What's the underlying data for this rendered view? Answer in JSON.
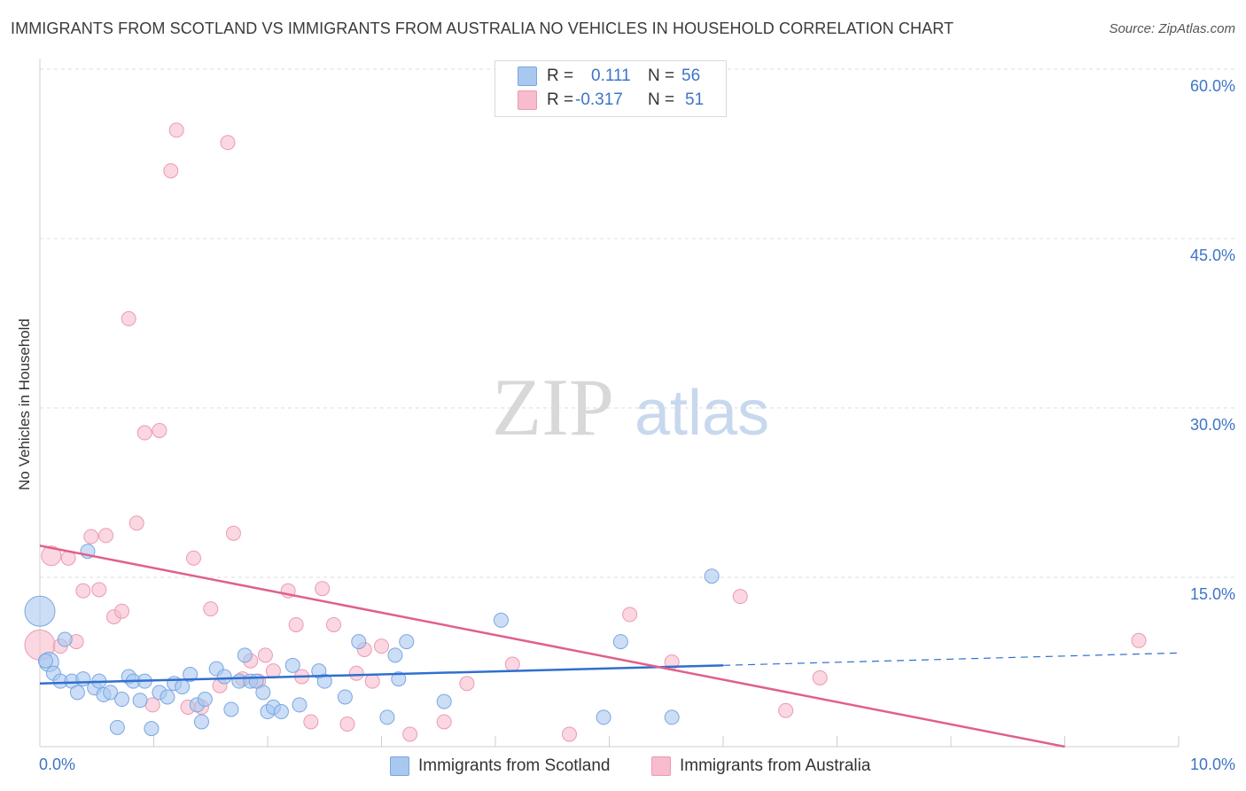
{
  "title": "IMMIGRANTS FROM SCOTLAND VS IMMIGRANTS FROM AUSTRALIA NO VEHICLES IN HOUSEHOLD CORRELATION CHART",
  "source": "Source: ZipAtlas.com",
  "watermark": {
    "zip": "ZIP",
    "atlas": "atlas"
  },
  "legend_top": {
    "scotland": {
      "r_label": "R =",
      "r_value": "0.111",
      "n_label": "N =",
      "n_value": "56"
    },
    "australia": {
      "r_label": "R =",
      "r_value": "-0.317",
      "n_label": "N =",
      "n_value": "51"
    }
  },
  "colors": {
    "scotland_fill": "#a9c8f0",
    "scotland_stroke": "#7aa6e0",
    "scotland_line": "#2f6fcf",
    "australia_fill": "#f7bccd",
    "australia_stroke": "#ec9ab2",
    "australia_line": "#e0608a",
    "tick_text": "#3d74c7",
    "grid": "#dcdcdc"
  },
  "chart_data": {
    "type": "scatter",
    "title": "IMMIGRANTS FROM SCOTLAND VS IMMIGRANTS FROM AUSTRALIA NO VEHICLES IN HOUSEHOLD CORRELATION CHART",
    "xlabel": "",
    "ylabel": "No Vehicles in Household",
    "xlim": [
      0,
      10
    ],
    "ylim": [
      0,
      60
    ],
    "x_tick_labels": [
      "0.0%",
      "10.0%"
    ],
    "y_ticks": [
      15,
      30,
      45,
      60
    ],
    "y_tick_labels": [
      "15.0%",
      "30.0%",
      "45.0%",
      "60.0%"
    ],
    "grid": true,
    "legend_placement": "bottom-center",
    "series": [
      {
        "name": "Immigrants from Scotland",
        "r": 0.111,
        "n": 56,
        "trend": {
          "x0": 0,
          "y0": 5.6,
          "x1": 6.0,
          "y1": 7.2,
          "dashed_to_x": 10.0,
          "dashed_to_y": 8.3
        },
        "points": [
          [
            0.0,
            12.0,
            3
          ],
          [
            0.08,
            7.5,
            2
          ],
          [
            0.12,
            6.5,
            1
          ],
          [
            0.18,
            5.8,
            1
          ],
          [
            0.22,
            9.5,
            1
          ],
          [
            0.28,
            5.8,
            1
          ],
          [
            0.33,
            4.8,
            1
          ],
          [
            0.38,
            6.0,
            1
          ],
          [
            0.42,
            17.3,
            1
          ],
          [
            0.48,
            5.2,
            1
          ],
          [
            0.52,
            5.8,
            1
          ],
          [
            0.56,
            4.6,
            1
          ],
          [
            0.62,
            4.8,
            1
          ],
          [
            0.68,
            1.7,
            1
          ],
          [
            0.72,
            4.2,
            1
          ],
          [
            0.78,
            6.2,
            1
          ],
          [
            0.82,
            5.8,
            1
          ],
          [
            0.88,
            4.1,
            1
          ],
          [
            0.92,
            5.8,
            1
          ],
          [
            0.98,
            1.6,
            1
          ],
          [
            1.05,
            4.8,
            1
          ],
          [
            1.12,
            4.4,
            1
          ],
          [
            1.18,
            5.6,
            1
          ],
          [
            1.25,
            5.3,
            1
          ],
          [
            1.32,
            6.4,
            1
          ],
          [
            1.38,
            3.7,
            1
          ],
          [
            1.42,
            2.2,
            1
          ],
          [
            1.45,
            4.2,
            1
          ],
          [
            1.55,
            6.9,
            1
          ],
          [
            1.62,
            6.2,
            1
          ],
          [
            1.68,
            3.3,
            1
          ],
          [
            1.75,
            5.8,
            1
          ],
          [
            1.8,
            8.1,
            1
          ],
          [
            1.85,
            5.8,
            1
          ],
          [
            1.9,
            5.8,
            1
          ],
          [
            1.96,
            4.8,
            1
          ],
          [
            2.0,
            3.1,
            1
          ],
          [
            2.05,
            3.5,
            1
          ],
          [
            2.12,
            3.1,
            1
          ],
          [
            2.22,
            7.2,
            1
          ],
          [
            2.28,
            3.7,
            1
          ],
          [
            2.45,
            6.7,
            1
          ],
          [
            2.5,
            5.8,
            1
          ],
          [
            2.68,
            4.4,
            1
          ],
          [
            2.8,
            9.3,
            1
          ],
          [
            3.05,
            2.6,
            1
          ],
          [
            3.12,
            8.1,
            1
          ],
          [
            3.15,
            6.0,
            1
          ],
          [
            3.22,
            9.3,
            1
          ],
          [
            3.55,
            4.0,
            1
          ],
          [
            4.05,
            11.2,
            1
          ],
          [
            4.95,
            2.6,
            1
          ],
          [
            5.1,
            9.3,
            1
          ],
          [
            5.55,
            2.6,
            1
          ],
          [
            5.9,
            15.1,
            1
          ],
          [
            0.05,
            7.6,
            1
          ]
        ]
      },
      {
        "name": "Immigrants from Australia",
        "r": -0.317,
        "n": 51,
        "trend": {
          "x0": 0,
          "y0": 17.8,
          "x1": 9.0,
          "y1": 0.0
        },
        "points": [
          [
            0.0,
            9.0,
            3
          ],
          [
            0.1,
            16.9,
            2
          ],
          [
            0.18,
            8.9,
            1
          ],
          [
            0.25,
            16.7,
            1
          ],
          [
            0.32,
            9.3,
            1
          ],
          [
            0.38,
            13.8,
            1
          ],
          [
            0.45,
            18.6,
            1
          ],
          [
            0.52,
            13.9,
            1
          ],
          [
            0.58,
            18.7,
            1
          ],
          [
            0.65,
            11.5,
            1
          ],
          [
            0.72,
            12.0,
            1
          ],
          [
            0.78,
            37.9,
            1
          ],
          [
            0.85,
            19.8,
            1
          ],
          [
            0.92,
            27.8,
            1
          ],
          [
            0.99,
            3.7,
            1
          ],
          [
            1.05,
            28.0,
            1
          ],
          [
            1.15,
            51.0,
            1
          ],
          [
            1.2,
            54.6,
            1
          ],
          [
            1.3,
            3.5,
            1
          ],
          [
            1.35,
            16.7,
            1
          ],
          [
            1.42,
            3.5,
            1
          ],
          [
            1.5,
            12.2,
            1
          ],
          [
            1.58,
            5.4,
            1
          ],
          [
            1.65,
            53.5,
            1
          ],
          [
            1.7,
            18.9,
            1
          ],
          [
            1.78,
            6.0,
            1
          ],
          [
            1.85,
            7.6,
            1
          ],
          [
            1.92,
            5.8,
            1
          ],
          [
            1.98,
            8.1,
            1
          ],
          [
            2.05,
            6.7,
            1
          ],
          [
            2.18,
            13.8,
            1
          ],
          [
            2.25,
            10.8,
            1
          ],
          [
            2.3,
            6.2,
            1
          ],
          [
            2.38,
            2.2,
            1
          ],
          [
            2.48,
            14.0,
            1
          ],
          [
            2.58,
            10.8,
            1
          ],
          [
            2.7,
            2.0,
            1
          ],
          [
            2.78,
            6.5,
            1
          ],
          [
            2.85,
            8.6,
            1
          ],
          [
            2.92,
            5.8,
            1
          ],
          [
            3.0,
            8.9,
            1
          ],
          [
            3.25,
            1.1,
            1
          ],
          [
            3.55,
            2.2,
            1
          ],
          [
            3.75,
            5.6,
            1
          ],
          [
            4.15,
            7.3,
            1
          ],
          [
            4.65,
            1.1,
            1
          ],
          [
            5.18,
            11.7,
            1
          ],
          [
            5.55,
            7.5,
            1
          ],
          [
            6.15,
            13.3,
            1
          ],
          [
            6.55,
            3.2,
            1
          ],
          [
            6.85,
            6.1,
            1
          ],
          [
            9.65,
            9.4,
            1
          ]
        ]
      }
    ]
  },
  "bottom_legend": {
    "scotland": "Immigrants from Scotland",
    "australia": "Immigrants from Australia"
  }
}
